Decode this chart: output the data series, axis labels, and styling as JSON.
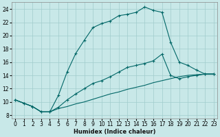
{
  "xlabel": "Humidex (Indice chaleur)",
  "bg_color": "#c8e8e8",
  "grid_color": "#a0cccc",
  "line_color": "#006666",
  "line1_x": [
    0,
    1,
    2,
    3,
    4,
    5,
    6,
    7,
    8,
    9,
    10,
    11,
    12,
    13,
    14,
    15,
    16,
    17,
    18,
    19,
    20,
    21,
    22,
    23
  ],
  "line1_y": [
    10.3,
    9.8,
    9.3,
    8.5,
    8.5,
    11.0,
    14.5,
    17.3,
    19.3,
    21.2,
    21.8,
    22.2,
    23.0,
    23.2,
    23.5,
    24.3,
    23.8,
    23.5,
    19.0,
    16.0,
    15.5,
    14.8,
    14.2,
    14.2
  ],
  "line2_x": [
    0,
    1,
    2,
    3,
    4,
    5,
    6,
    7,
    8,
    9,
    10,
    11,
    12,
    13,
    14,
    15,
    16,
    17,
    18,
    19,
    20,
    21,
    22,
    23
  ],
  "line2_y": [
    10.3,
    9.8,
    9.3,
    8.5,
    8.5,
    9.2,
    10.3,
    11.2,
    12.0,
    12.8,
    13.2,
    13.8,
    14.5,
    15.2,
    15.5,
    15.8,
    16.2,
    17.2,
    14.0,
    13.5,
    13.8,
    14.0,
    14.2,
    14.2
  ],
  "line3_x": [
    0,
    1,
    2,
    3,
    4,
    5,
    6,
    7,
    8,
    9,
    10,
    11,
    12,
    13,
    14,
    15,
    16,
    17,
    18,
    19,
    20,
    21,
    22,
    23
  ],
  "line3_y": [
    10.3,
    9.8,
    9.3,
    8.5,
    8.5,
    9.0,
    9.3,
    9.7,
    10.0,
    10.4,
    10.8,
    11.2,
    11.5,
    11.9,
    12.2,
    12.5,
    12.9,
    13.2,
    13.5,
    13.8,
    14.0,
    14.1,
    14.2,
    14.2
  ],
  "xlim_min": -0.4,
  "xlim_max": 23.4,
  "ylim_min": 7.5,
  "ylim_max": 25.0,
  "xticks": [
    0,
    1,
    2,
    3,
    4,
    5,
    6,
    7,
    8,
    9,
    10,
    11,
    12,
    13,
    14,
    15,
    16,
    17,
    18,
    19,
    20,
    21,
    22,
    23
  ],
  "yticks": [
    8,
    10,
    12,
    14,
    16,
    18,
    20,
    22,
    24
  ],
  "xlabel_fontsize": 6.0,
  "tick_fontsize": 5.5
}
